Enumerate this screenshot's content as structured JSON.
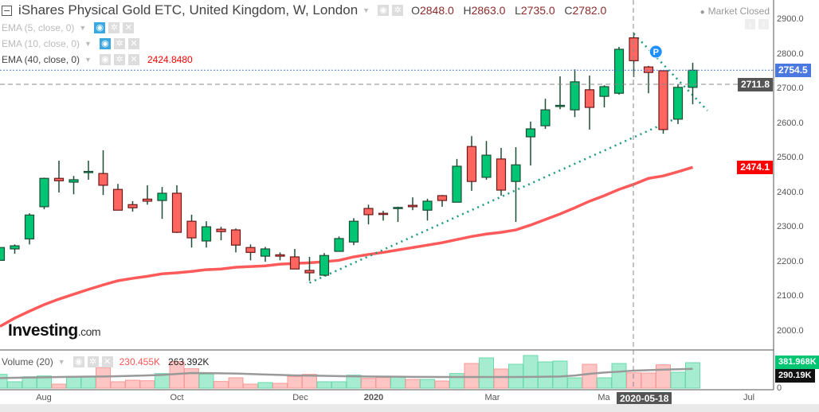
{
  "header": {
    "title": "iShares Physical Gold ETC, United Kingdom, W, London",
    "open_label": "O",
    "open": "2848.0",
    "high_label": "H",
    "high": "2863.0",
    "low_label": "L",
    "low": "2735.0",
    "close_label": "C",
    "close": "2782.0",
    "market_status": "Market Closed"
  },
  "indicators": [
    {
      "label": "EMA (5, close, 0)",
      "value": ""
    },
    {
      "label": "EMA (10, close, 0)",
      "value": ""
    },
    {
      "label": "EMA (40, close, 0)",
      "value": "2424.8480"
    }
  ],
  "volume": {
    "label": "Volume (20)",
    "value": "230.455K",
    "ma_value": "263.392K",
    "last_tag": "381.968K",
    "ma_tag": "290.19K",
    "zero_label": "0"
  },
  "price_axis": [
    "2900.0",
    "2800.0",
    "2700.0",
    "2600.0",
    "2500.0",
    "2400.0",
    "2300.0",
    "2200.0",
    "2100.0",
    "2000.0"
  ],
  "tags": {
    "last_price": "2754.5",
    "crosshair_price": "2711.8",
    "ema_last": "2474.1"
  },
  "time_axis": [
    "Aug",
    "Oct",
    "Dec",
    "2020",
    "Mar",
    "Ma",
    "Jul"
  ],
  "crosshair_date": "2020-05-18",
  "logo": {
    "name": "Investing",
    "suffix": ".com"
  },
  "colors": {
    "up": "#00c572",
    "down": "#ff6660",
    "ema": "#ff5555",
    "trend": "#1a9980",
    "last": "#4a78e0",
    "crosshair": "#555555"
  },
  "chart_data": {
    "type": "candlestick",
    "interval": "W",
    "ylim": [
      2000,
      2900
    ],
    "ohlc": [
      [
        2205,
        2242,
        2205,
        2242
      ],
      [
        2238,
        2251,
        2224,
        2247
      ],
      [
        2267,
        2341,
        2251,
        2336
      ],
      [
        2360,
        2444,
        2353,
        2442
      ],
      [
        2442,
        2493,
        2401,
        2435
      ],
      [
        2431,
        2449,
        2396,
        2438
      ],
      [
        2460,
        2493,
        2438,
        2462
      ],
      [
        2456,
        2523,
        2394,
        2422
      ],
      [
        2410,
        2426,
        2350,
        2350
      ],
      [
        2366,
        2376,
        2346,
        2357
      ],
      [
        2382,
        2422,
        2366,
        2376
      ],
      [
        2378,
        2417,
        2325,
        2399
      ],
      [
        2399,
        2422,
        2284,
        2286
      ],
      [
        2318,
        2337,
        2242,
        2270
      ],
      [
        2261,
        2318,
        2242,
        2302
      ],
      [
        2295,
        2302,
        2263,
        2288
      ],
      [
        2293,
        2297,
        2228,
        2249
      ],
      [
        2242,
        2251,
        2205,
        2228
      ],
      [
        2217,
        2244,
        2201,
        2238
      ],
      [
        2221,
        2228,
        2205,
        2217
      ],
      [
        2215,
        2238,
        2180,
        2180
      ],
      [
        2176,
        2215,
        2146,
        2169
      ],
      [
        2162,
        2226,
        2159,
        2219
      ],
      [
        2231,
        2274,
        2231,
        2268
      ],
      [
        2258,
        2327,
        2249,
        2318
      ],
      [
        2355,
        2366,
        2309,
        2337
      ],
      [
        2341,
        2348,
        2320,
        2339
      ],
      [
        2357,
        2360,
        2316,
        2358
      ],
      [
        2364,
        2387,
        2350,
        2360
      ],
      [
        2350,
        2383,
        2320,
        2376
      ],
      [
        2392,
        2394,
        2360,
        2378
      ],
      [
        2373,
        2498,
        2373,
        2477
      ],
      [
        2534,
        2564,
        2406,
        2433
      ],
      [
        2445,
        2550,
        2438,
        2509
      ],
      [
        2498,
        2530,
        2392,
        2408
      ],
      [
        2433,
        2532,
        2316,
        2481
      ],
      [
        2562,
        2606,
        2479,
        2585
      ],
      [
        2594,
        2672,
        2585,
        2640
      ],
      [
        2650,
        2737,
        2642,
        2653
      ],
      [
        2640,
        2757,
        2619,
        2721
      ],
      [
        2698,
        2739,
        2583,
        2647
      ],
      [
        2679,
        2711,
        2647,
        2707
      ],
      [
        2688,
        2822,
        2684,
        2815
      ],
      [
        2848,
        2863,
        2735,
        2782
      ],
      [
        2764,
        2767,
        2688,
        2748
      ],
      [
        2753,
        2753,
        2571,
        2583
      ],
      [
        2613,
        2714,
        2599,
        2705
      ],
      [
        2705,
        2776,
        2656,
        2754.5
      ]
    ],
    "ema40": [
      2014,
      2038,
      2058,
      2077,
      2093,
      2107,
      2121,
      2134,
      2146,
      2153,
      2159,
      2166,
      2169,
      2173,
      2178,
      2180,
      2185,
      2187,
      2189,
      2194,
      2196,
      2198,
      2201,
      2205,
      2215,
      2222,
      2228,
      2235,
      2242,
      2249,
      2256,
      2265,
      2274,
      2281,
      2286,
      2293,
      2307,
      2323,
      2339,
      2357,
      2376,
      2392,
      2410,
      2424.848,
      2442,
      2449,
      2461,
      2474.1
    ],
    "volume_k": [
      207,
      96,
      171,
      183,
      60,
      179,
      175,
      310,
      96,
      119,
      111,
      219,
      398,
      291,
      211,
      100,
      155,
      60,
      84,
      72,
      175,
      207,
      96,
      96,
      195,
      147,
      159,
      167,
      131,
      131,
      107,
      219,
      370,
      454,
      287,
      358,
      490,
      394,
      406,
      155,
      358,
      155,
      370,
      230.455,
      227,
      350,
      239,
      381.968
    ],
    "volume_ma_k": [
      151,
      155,
      159,
      163,
      167,
      170,
      173,
      175,
      179,
      185,
      191,
      199,
      213,
      227,
      225,
      222,
      219,
      212,
      205,
      198,
      191,
      188,
      185,
      181,
      178,
      175,
      173,
      171,
      169,
      168,
      167,
      167,
      167,
      167,
      167,
      167,
      169,
      171,
      175,
      190,
      215,
      235,
      247,
      263.392,
      270,
      277,
      284,
      290.19
    ],
    "trendlines": [
      {
        "from": {
          "bar": 21,
          "price": 2140
        },
        "to": {
          "bar": 46,
          "price": 2618
        }
      },
      {
        "from": {
          "bar": 43,
          "price": 2860
        },
        "to": {
          "bar": 48,
          "price": 2638
        }
      }
    ],
    "marker": {
      "bar": 45,
      "price": 2808,
      "label": "P"
    }
  }
}
